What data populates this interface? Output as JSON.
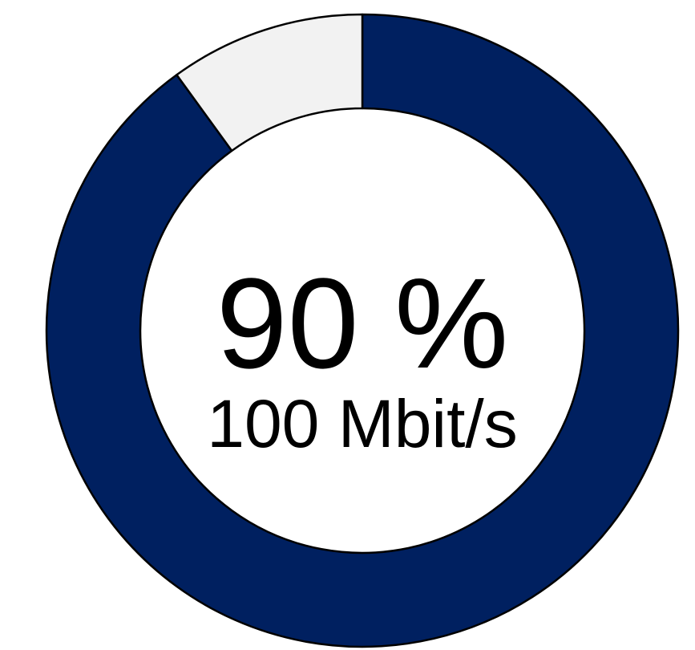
{
  "chart_data": {
    "type": "donut",
    "values": [
      90,
      10
    ],
    "value_labels": [
      "90 %",
      null
    ],
    "colors": [
      "#002060",
      "#f2f2f2"
    ],
    "subtitle": "100 Mbit/s"
  }
}
